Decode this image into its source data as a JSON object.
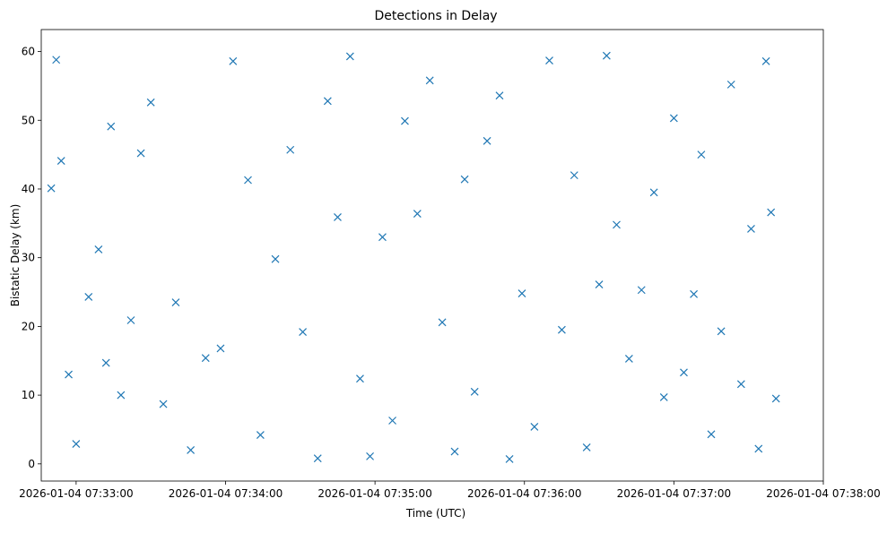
{
  "chart_data": {
    "type": "scatter",
    "title": "Detections in Delay",
    "xlabel": "Time (UTC)",
    "ylabel": "Bistatic Delay (km)",
    "x_type": "datetime",
    "xlim": [
      "2026-01-04 07:32:46",
      "2026-01-04 07:38:00"
    ],
    "ylim": [
      -2.5,
      63.2
    ],
    "x_ticks": [
      "2026-01-04 07:33:00",
      "2026-01-04 07:34:00",
      "2026-01-04 07:35:00",
      "2026-01-04 07:36:00",
      "2026-01-04 07:37:00",
      "2026-01-04 07:38:00"
    ],
    "y_ticks": [
      0,
      10,
      20,
      30,
      40,
      50,
      60
    ],
    "grid": false,
    "marker": "x",
    "colors": {
      "series": "#1f77b4"
    },
    "series": [
      {
        "points": [
          [
            "2026-01-04 07:32:50",
            40.1
          ],
          [
            "2026-01-04 07:32:52",
            58.8
          ],
          [
            "2026-01-04 07:32:54",
            44.1
          ],
          [
            "2026-01-04 07:32:57",
            13.0
          ],
          [
            "2026-01-04 07:33:00",
            2.9
          ],
          [
            "2026-01-04 07:33:05",
            24.3
          ],
          [
            "2026-01-04 07:33:09",
            31.2
          ],
          [
            "2026-01-04 07:33:12",
            14.7
          ],
          [
            "2026-01-04 07:33:14",
            49.1
          ],
          [
            "2026-01-04 07:33:18",
            10.0
          ],
          [
            "2026-01-04 07:33:22",
            20.9
          ],
          [
            "2026-01-04 07:33:26",
            45.2
          ],
          [
            "2026-01-04 07:33:30",
            52.6
          ],
          [
            "2026-01-04 07:33:35",
            8.7
          ],
          [
            "2026-01-04 07:33:40",
            23.5
          ],
          [
            "2026-01-04 07:33:46",
            2.0
          ],
          [
            "2026-01-04 07:33:52",
            15.4
          ],
          [
            "2026-01-04 07:33:58",
            16.8
          ],
          [
            "2026-01-04 07:34:03",
            58.6
          ],
          [
            "2026-01-04 07:34:09",
            41.3
          ],
          [
            "2026-01-04 07:34:14",
            4.2
          ],
          [
            "2026-01-04 07:34:20",
            29.8
          ],
          [
            "2026-01-04 07:34:26",
            45.7
          ],
          [
            "2026-01-04 07:34:31",
            19.2
          ],
          [
            "2026-01-04 07:34:37",
            0.8
          ],
          [
            "2026-01-04 07:34:41",
            52.8
          ],
          [
            "2026-01-04 07:34:45",
            35.9
          ],
          [
            "2026-01-04 07:34:50",
            59.3
          ],
          [
            "2026-01-04 07:34:54",
            12.4
          ],
          [
            "2026-01-04 07:34:58",
            1.1
          ],
          [
            "2026-01-04 07:35:03",
            33.0
          ],
          [
            "2026-01-04 07:35:07",
            6.3
          ],
          [
            "2026-01-04 07:35:12",
            49.9
          ],
          [
            "2026-01-04 07:35:17",
            36.4
          ],
          [
            "2026-01-04 07:35:22",
            55.8
          ],
          [
            "2026-01-04 07:35:27",
            20.6
          ],
          [
            "2026-01-04 07:35:32",
            1.8
          ],
          [
            "2026-01-04 07:35:36",
            41.4
          ],
          [
            "2026-01-04 07:35:40",
            10.5
          ],
          [
            "2026-01-04 07:35:45",
            47.0
          ],
          [
            "2026-01-04 07:35:50",
            53.6
          ],
          [
            "2026-01-04 07:35:54",
            0.7
          ],
          [
            "2026-01-04 07:35:59",
            24.8
          ],
          [
            "2026-01-04 07:36:04",
            5.4
          ],
          [
            "2026-01-04 07:36:10",
            58.7
          ],
          [
            "2026-01-04 07:36:15",
            19.5
          ],
          [
            "2026-01-04 07:36:20",
            42.0
          ],
          [
            "2026-01-04 07:36:25",
            2.4
          ],
          [
            "2026-01-04 07:36:30",
            26.1
          ],
          [
            "2026-01-04 07:36:33",
            59.4
          ],
          [
            "2026-01-04 07:36:37",
            34.8
          ],
          [
            "2026-01-04 07:36:42",
            15.3
          ],
          [
            "2026-01-04 07:36:47",
            25.3
          ],
          [
            "2026-01-04 07:36:52",
            39.5
          ],
          [
            "2026-01-04 07:36:56",
            9.7
          ],
          [
            "2026-01-04 07:37:00",
            50.3
          ],
          [
            "2026-01-04 07:37:04",
            13.3
          ],
          [
            "2026-01-04 07:37:08",
            24.7
          ],
          [
            "2026-01-04 07:37:11",
            45.0
          ],
          [
            "2026-01-04 07:37:15",
            4.3
          ],
          [
            "2026-01-04 07:37:19",
            19.3
          ],
          [
            "2026-01-04 07:37:23",
            55.2
          ],
          [
            "2026-01-04 07:37:27",
            11.6
          ],
          [
            "2026-01-04 07:37:31",
            34.2
          ],
          [
            "2026-01-04 07:37:34",
            2.2
          ],
          [
            "2026-01-04 07:37:37",
            58.6
          ],
          [
            "2026-01-04 07:37:39",
            36.6
          ],
          [
            "2026-01-04 07:37:41",
            9.5
          ]
        ]
      }
    ]
  }
}
